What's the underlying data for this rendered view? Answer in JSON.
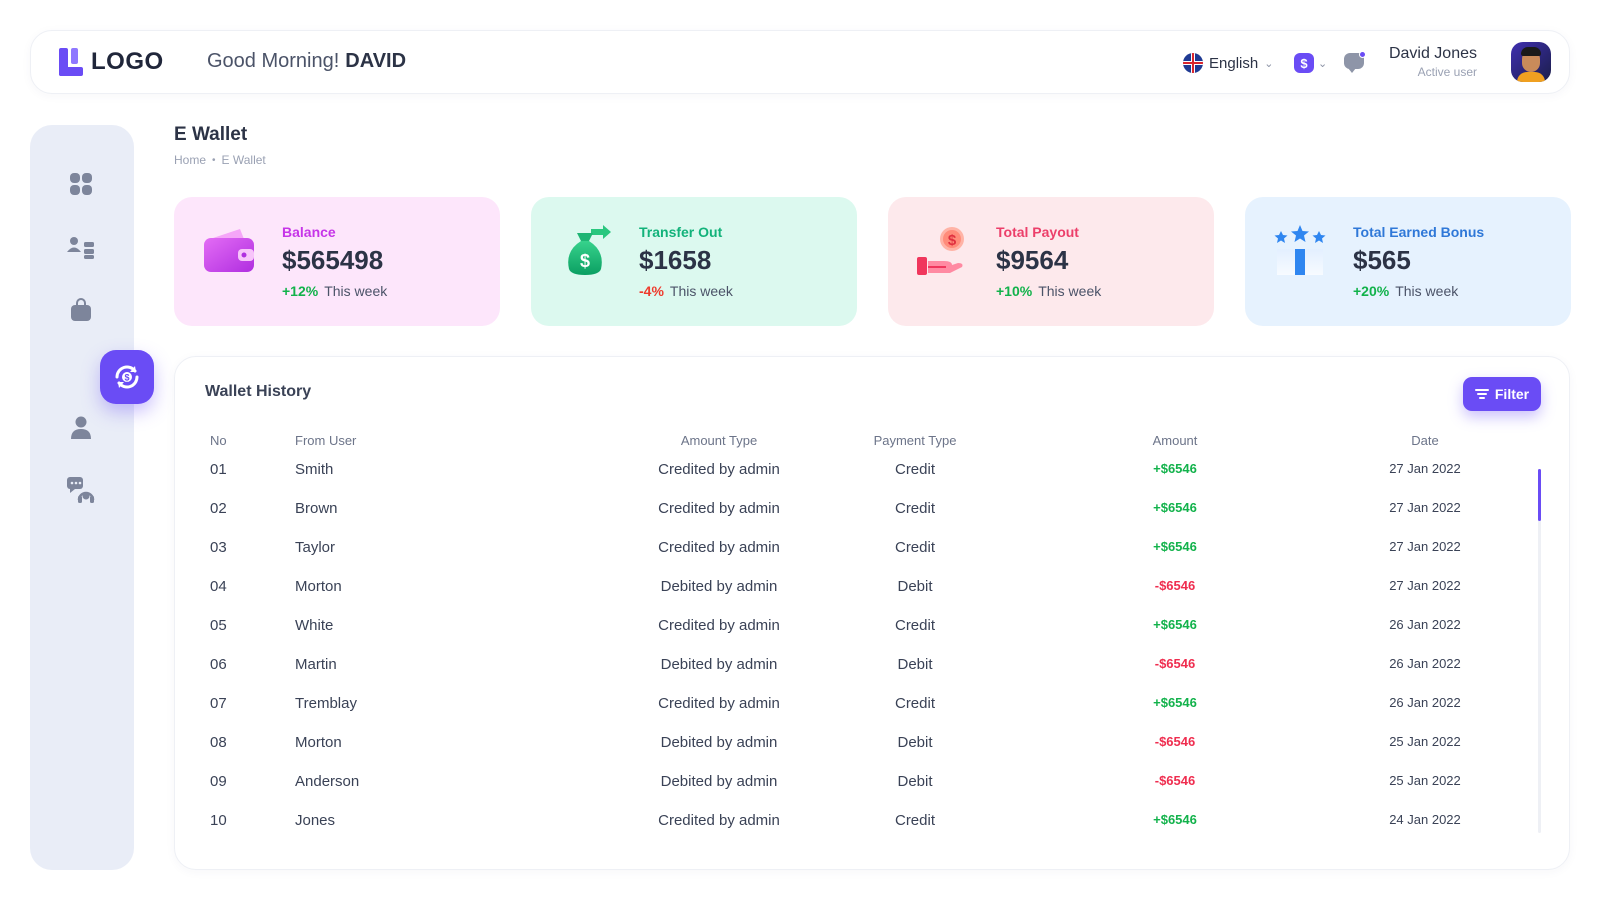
{
  "header": {
    "logo_text": "LOGO",
    "greeting": "Good Morning!",
    "greeting_name": "DAVID",
    "language": "English",
    "currency_symbol": "$",
    "user_name": "David Jones",
    "user_status": "Active user"
  },
  "sidebar": {
    "items": [
      {
        "icon": "dashboard-icon"
      },
      {
        "icon": "network-icon"
      },
      {
        "icon": "shopping-bag-icon"
      },
      {
        "icon": "wallet-exchange-icon",
        "active": true
      },
      {
        "icon": "user-icon"
      },
      {
        "icon": "support-chat-icon"
      }
    ]
  },
  "page": {
    "title": "E Wallet",
    "breadcrumb": [
      "Home",
      "E Wallet"
    ]
  },
  "cards": [
    {
      "label": "Balance",
      "value": "$565498",
      "delta": "+12%",
      "period": "This week",
      "label_color": "#c635e8",
      "bg": "#fde6fb",
      "trend": "up"
    },
    {
      "label": "Transfer Out",
      "value": "$1658",
      "delta": "-4%",
      "period": "This week",
      "label_color": "#12b27a",
      "bg": "#dcf9ef",
      "trend": "down"
    },
    {
      "label": "Total Payout",
      "value": "$9564",
      "delta": "+10%",
      "period": "This week",
      "label_color": "#ec3f6a",
      "bg": "#fde9ec",
      "trend": "up"
    },
    {
      "label": "Total Earned Bonus",
      "value": "$565",
      "delta": "+20%",
      "period": "This week",
      "label_color": "#2f78d8",
      "bg": "#e6f2fe",
      "trend": "up"
    }
  ],
  "history": {
    "title": "Wallet History",
    "filter_label": "Filter",
    "columns": {
      "no": "No",
      "from_user": "From User",
      "amount_type": "Amount Type",
      "payment_type": "Payment Type",
      "amount": "Amount",
      "date": "Date"
    },
    "rows": [
      {
        "no": "01",
        "user": "Smith",
        "amount_type": "Credited by admin",
        "payment_type": "Credit",
        "amount": "+$6546",
        "date": "27 Jan 2022"
      },
      {
        "no": "02",
        "user": "Brown",
        "amount_type": "Credited by admin",
        "payment_type": "Credit",
        "amount": "+$6546",
        "date": "27 Jan 2022"
      },
      {
        "no": "03",
        "user": "Taylor",
        "amount_type": "Credited by admin",
        "payment_type": "Credit",
        "amount": "+$6546",
        "date": "27 Jan 2022"
      },
      {
        "no": "04",
        "user": "Morton",
        "amount_type": "Debited by admin",
        "payment_type": "Debit",
        "amount": "-$6546",
        "date": "27 Jan 2022"
      },
      {
        "no": "05",
        "user": "White",
        "amount_type": "Credited by admin",
        "payment_type": "Credit",
        "amount": "+$6546",
        "date": "26 Jan 2022"
      },
      {
        "no": "06",
        "user": "Martin",
        "amount_type": "Debited by admin",
        "payment_type": "Debit",
        "amount": "-$6546",
        "date": "26 Jan 2022"
      },
      {
        "no": "07",
        "user": "Tremblay",
        "amount_type": "Credited by admin",
        "payment_type": "Credit",
        "amount": "+$6546",
        "date": "26 Jan 2022"
      },
      {
        "no": "08",
        "user": "Morton",
        "amount_type": "Debited by admin",
        "payment_type": "Debit",
        "amount": "-$6546",
        "date": "25 Jan 2022"
      },
      {
        "no": "09",
        "user": "Anderson",
        "amount_type": "Debited by admin",
        "payment_type": "Debit",
        "amount": "-$6546",
        "date": "25 Jan 2022"
      },
      {
        "no": "10",
        "user": "Jones",
        "amount_type": "Credited by admin",
        "payment_type": "Credit",
        "amount": "+$6546",
        "date": "24 Jan 2022"
      }
    ]
  },
  "colors": {
    "accent": "#6a4cf5",
    "positive": "#12b24b",
    "negative": "#ef2d4f",
    "sidebar_bg": "#e9edf7"
  }
}
